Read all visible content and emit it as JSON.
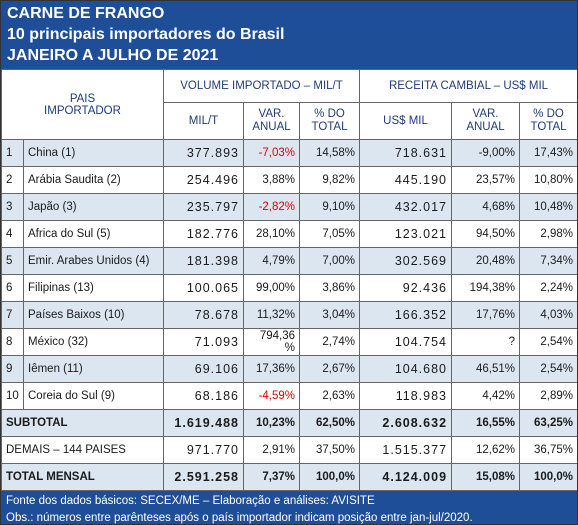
{
  "header": {
    "title": [
      "CARNE DE FRANGO",
      "10 principais importadores do Brasil",
      "JANEIRO A JULHO DE 2021"
    ]
  },
  "table": {
    "country_header": "PAIS IMPORTADOR",
    "groups": [
      "VOLUME IMPORTADO – MIL/T",
      "RECEITA CAMBIAL – US$ MIL"
    ],
    "subheaders": [
      "MIL/T",
      "VAR. ANUAL",
      "% DO TOTAL",
      "US$ MIL",
      "VAR. ANUAL",
      "% DO TOTAL"
    ],
    "rows": [
      [
        "1",
        "China (1)",
        "377.893",
        "-7,03%",
        "14,58%",
        "718.631",
        "-9,00%",
        "17,43%"
      ],
      [
        "2",
        "Arábia Saudita (2)",
        "254.496",
        "3,88%",
        "9,82%",
        "445.190",
        "23,57%",
        "10,80%"
      ],
      [
        "3",
        "Japão (3)",
        "235.797",
        "-2,82%",
        "9,10%",
        "432.017",
        "4,68%",
        "10,48%"
      ],
      [
        "4",
        "Africa do Sul (5)",
        "182.776",
        "28,10%",
        "7,05%",
        "123.021",
        "94,50%",
        "2,98%"
      ],
      [
        "5",
        "Emir. Arabes Unidos (4)",
        "181.398",
        "4,79%",
        "7,00%",
        "302.569",
        "20,48%",
        "7,34%"
      ],
      [
        "6",
        "Filipinas (13)",
        "100.065",
        "99,00%",
        "3,86%",
        "92.436",
        "194,38%",
        "2,24%"
      ],
      [
        "7",
        "Países Baixos (10)",
        "78.678",
        "11,32%",
        "3,04%",
        "166.352",
        "17,76%",
        "4,03%"
      ],
      [
        "8",
        "México (32)",
        "71.093",
        "794,36 %",
        "2,74%",
        "104.754",
        "?",
        "2,54%"
      ],
      [
        "9",
        "Iêmen (11)",
        "69.106",
        "17,36%",
        "2,67%",
        "104.680",
        "46,51%",
        "2,54%"
      ],
      [
        "10",
        "Coreia do Sul (9)",
        "68.186",
        "-4,59%",
        "2,63%",
        "118.983",
        "4,42%",
        "2,89%"
      ]
    ],
    "summary_rows": [
      [
        "SUBTOTAL",
        "1.619.488",
        "10,23%",
        "62,50%",
        "2.608.632",
        "16,55%",
        "63,25%"
      ],
      [
        "DEMAIS – 144 PAISES",
        "971.770",
        "2,91%",
        "37,50%",
        "1.515.377",
        "12,62%",
        "36,75%"
      ],
      [
        "TOTAL MENSAL",
        "2.591.258",
        "7,37%",
        "100,0%",
        "4.124.009",
        "15,08%",
        "100,0%"
      ]
    ]
  },
  "footer": [
    "Fonte dos dados básicos: SECEX/ME – Elaboração e análises: AVISITE",
    "Obs.: números entre parênteses após o país importador indicam posição entre jan-jul/2020."
  ]
}
